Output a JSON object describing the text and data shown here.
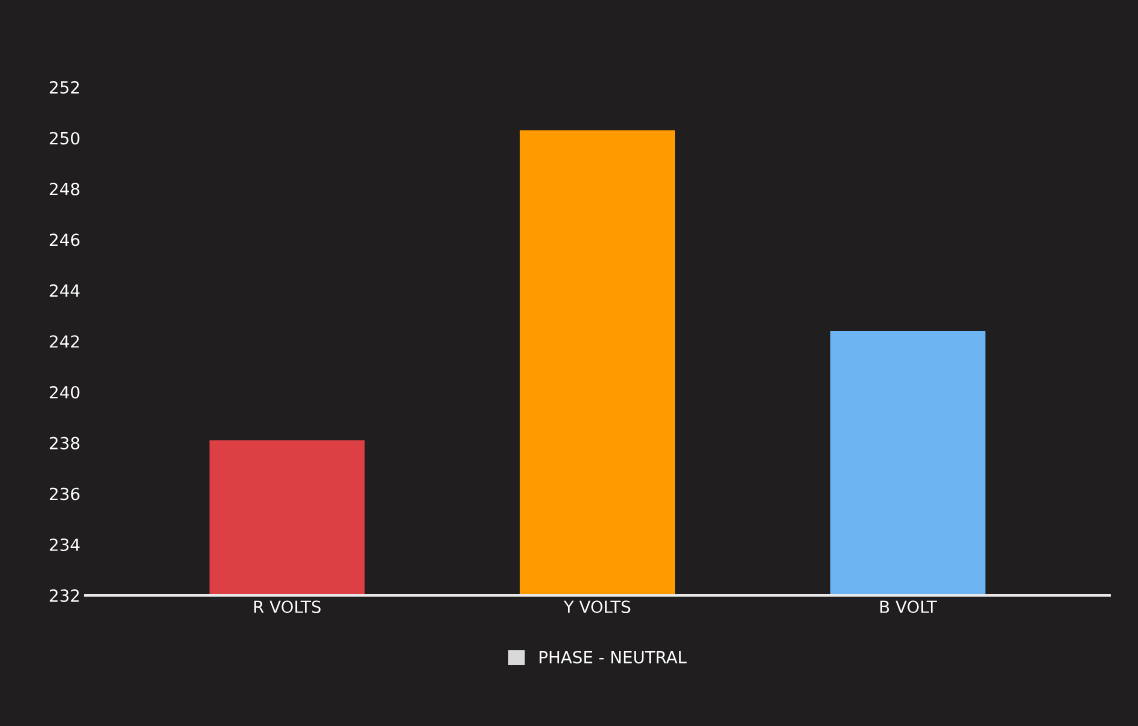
{
  "chart_data": {
    "type": "bar",
    "categories": [
      "R VOLTS",
      "Y VOLTS",
      "B VOLT"
    ],
    "series": [
      {
        "name": "PHASE - NEUTRAL",
        "color": "#d9d9d9",
        "colors": [
          "#dc3f44",
          "#ff9a00",
          "#6cb4f2"
        ],
        "values": [
          238.1,
          250.3,
          242.4
        ]
      }
    ],
    "ylim": [
      232,
      252
    ],
    "yticks": [
      232,
      234,
      236,
      238,
      240,
      242,
      244,
      246,
      248,
      250,
      252
    ],
    "grid": false,
    "legend": "bottom"
  }
}
